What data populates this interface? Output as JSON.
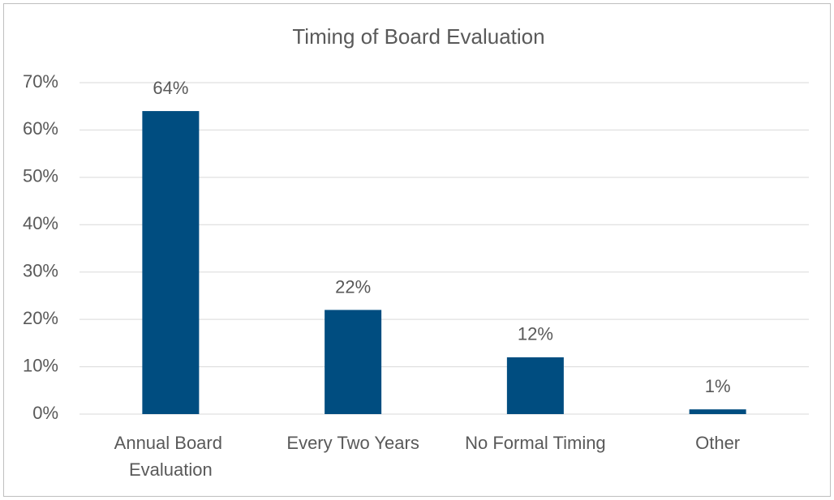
{
  "chart_data": {
    "type": "bar",
    "title": "Timing of Board Evaluation",
    "categories": [
      "Annual Board Evaluation",
      "Every Two Years",
      "No Formal Timing",
      "Other"
    ],
    "values": [
      64,
      22,
      12,
      1
    ],
    "value_labels": [
      "64%",
      "22%",
      "12%",
      "1%"
    ],
    "color": "#004d80",
    "ylim": [
      0,
      70
    ],
    "yticks": [
      {
        "value": 0,
        "label": "0%"
      },
      {
        "value": 10,
        "label": "10%"
      },
      {
        "value": 20,
        "label": "20%"
      },
      {
        "value": 30,
        "label": "30%"
      },
      {
        "value": 40,
        "label": "40%"
      },
      {
        "value": 50,
        "label": "50%"
      },
      {
        "value": 60,
        "label": "60%"
      },
      {
        "value": 70,
        "label": "70%"
      }
    ],
    "grid": true
  }
}
